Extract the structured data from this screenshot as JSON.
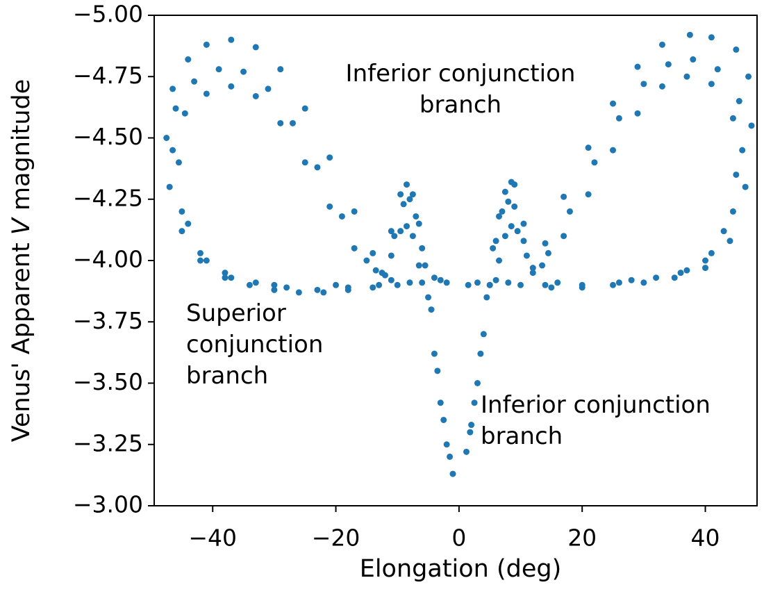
{
  "chart_data": {
    "type": "scatter",
    "xlabel": "Elongation (deg)",
    "ylabel": [
      "Venus' Apparent ",
      "V",
      " magnitude"
    ],
    "color": "#1f77b4",
    "xlim": [
      -49.5,
      48.4
    ],
    "ylim": [
      -3.0,
      -5.0
    ],
    "xticks": [
      {
        "value": -40,
        "label": "−40"
      },
      {
        "value": -20,
        "label": "−20"
      },
      0,
      20,
      40
    ],
    "yticks": [
      {
        "value": -5.0,
        "label": "−5.00"
      },
      {
        "value": -4.75,
        "label": "−4.75"
      },
      {
        "value": -4.5,
        "label": "−4.50"
      },
      {
        "value": -4.25,
        "label": "−4.25"
      },
      {
        "value": -4.0,
        "label": "−4.00"
      },
      {
        "value": -3.75,
        "label": "−3.75"
      },
      {
        "value": -3.5,
        "label": "−3.50"
      },
      {
        "value": -3.25,
        "label": "−3.25"
      },
      {
        "value": -3.0,
        "label": "−3.00"
      }
    ],
    "annotations": [
      {
        "lines": [
          "Inferior conjunction",
          "branch"
        ]
      },
      {
        "lines": [
          "Superior",
          "conjunction",
          "branch"
        ]
      },
      {
        "lines": [
          "Inferior conjunction",
          "branch"
        ]
      }
    ],
    "series": [
      {
        "x": [
          -2,
          -6,
          -10,
          -14,
          -18,
          -22,
          -26,
          -30,
          -34,
          -38,
          -42,
          -45,
          -47,
          -47.5,
          -46.5,
          -44,
          -41,
          -37,
          -33,
          -29,
          -25,
          -21,
          -17,
          -14,
          -12.5,
          -11,
          -9.5,
          -8.5,
          -7.5,
          -6.5,
          -5.5,
          -4.5,
          -3.5,
          -2.5,
          -1.5,
          -1
        ],
        "values": [
          -3.91,
          -3.91,
          -3.9,
          -3.89,
          -3.88,
          -3.87,
          -3.87,
          -3.88,
          -3.9,
          -3.93,
          -4.0,
          -4.12,
          -4.3,
          -4.5,
          -4.7,
          -4.82,
          -4.88,
          -4.9,
          -4.87,
          -4.78,
          -4.62,
          -4.42,
          -4.2,
          -4.03,
          -3.95,
          -4.12,
          -4.27,
          -4.31,
          -4.27,
          -4.15,
          -3.98,
          -3.8,
          -3.55,
          -3.35,
          -3.2,
          -3.13
        ]
      },
      {
        "x": [
          -3,
          -8,
          -13,
          -18,
          -23,
          -28,
          -33,
          -38,
          -42,
          -45,
          -46.5,
          -46,
          -43,
          -39,
          -35,
          -31,
          -27,
          -23,
          -19,
          -15,
          -12,
          -10.5,
          -9,
          -8,
          -7,
          -6,
          -5,
          -4,
          -3,
          -2
        ],
        "values": [
          -3.92,
          -3.91,
          -3.9,
          -3.89,
          -3.88,
          -3.89,
          -3.91,
          -3.95,
          -4.03,
          -4.2,
          -4.45,
          -4.62,
          -4.73,
          -4.78,
          -4.77,
          -4.7,
          -4.56,
          -4.38,
          -4.18,
          -4.0,
          -3.94,
          -4.1,
          -4.23,
          -4.25,
          -4.18,
          -4.05,
          -3.85,
          -3.62,
          -3.42,
          -3.25
        ]
      },
      {
        "x": [
          -4,
          -11,
          -20,
          -30,
          -37,
          -41,
          -44,
          -45.5,
          -44.5,
          -41,
          -37,
          -33,
          -29,
          -25,
          -21,
          -17,
          -13.5,
          -11,
          -9.5,
          -8.5,
          -7.5,
          -6.5
        ],
        "values": [
          -3.93,
          -3.92,
          -3.9,
          -3.9,
          -3.93,
          -4.0,
          -4.15,
          -4.4,
          -4.6,
          -4.68,
          -4.71,
          -4.67,
          -4.56,
          -4.4,
          -4.22,
          -4.05,
          -3.96,
          -4.02,
          -4.12,
          -4.14,
          -4.1,
          -3.98
        ]
      },
      {
        "x": [
          1.5,
          5,
          10,
          15,
          20,
          25,
          30,
          35,
          40,
          44,
          46.5,
          47.5,
          47,
          45,
          41,
          37.5,
          33,
          29,
          25,
          21,
          17,
          14,
          12,
          10.5,
          9,
          8.5,
          7.5,
          6.5,
          5.5,
          4.5,
          3.5,
          2.5,
          1.8,
          1.2
        ],
        "values": [
          -3.9,
          -3.9,
          -3.9,
          -3.89,
          -3.89,
          -3.9,
          -3.91,
          -3.93,
          -3.97,
          -4.08,
          -4.3,
          -4.55,
          -4.75,
          -4.86,
          -4.91,
          -4.92,
          -4.88,
          -4.79,
          -4.64,
          -4.46,
          -4.26,
          -4.07,
          -3.97,
          -4.15,
          -4.31,
          -4.32,
          -4.28,
          -4.18,
          -4.05,
          -3.85,
          -3.62,
          -3.42,
          -3.3,
          -3.22
        ]
      },
      {
        "x": [
          3,
          8,
          14,
          20,
          26,
          32,
          37,
          41,
          44.5,
          46,
          45.5,
          42,
          38,
          34,
          30,
          26,
          22,
          18,
          14.5,
          12,
          10.5,
          9,
          8,
          7,
          6,
          5,
          4,
          3,
          2
        ],
        "values": [
          -3.91,
          -3.91,
          -3.9,
          -3.9,
          -3.91,
          -3.93,
          -3.96,
          -4.03,
          -4.2,
          -4.45,
          -4.65,
          -4.78,
          -4.82,
          -4.8,
          -4.72,
          -4.58,
          -4.4,
          -4.2,
          -4.03,
          -3.95,
          -4.08,
          -4.22,
          -4.24,
          -4.2,
          -4.08,
          -3.9,
          -3.7,
          -3.5,
          -3.33
        ]
      },
      {
        "x": [
          6,
          16,
          28,
          36,
          40,
          43,
          45,
          44.5,
          41,
          37,
          33,
          29,
          25,
          21,
          17,
          13.5,
          11,
          9.5,
          8.5,
          7.5,
          6.5
        ],
        "values": [
          -3.92,
          -3.91,
          -3.92,
          -3.95,
          -4.0,
          -4.12,
          -4.35,
          -4.58,
          -4.72,
          -4.75,
          -4.71,
          -4.6,
          -4.45,
          -4.27,
          -4.1,
          -3.98,
          -4.02,
          -4.12,
          -4.14,
          -4.1,
          -4.0
        ]
      }
    ]
  }
}
